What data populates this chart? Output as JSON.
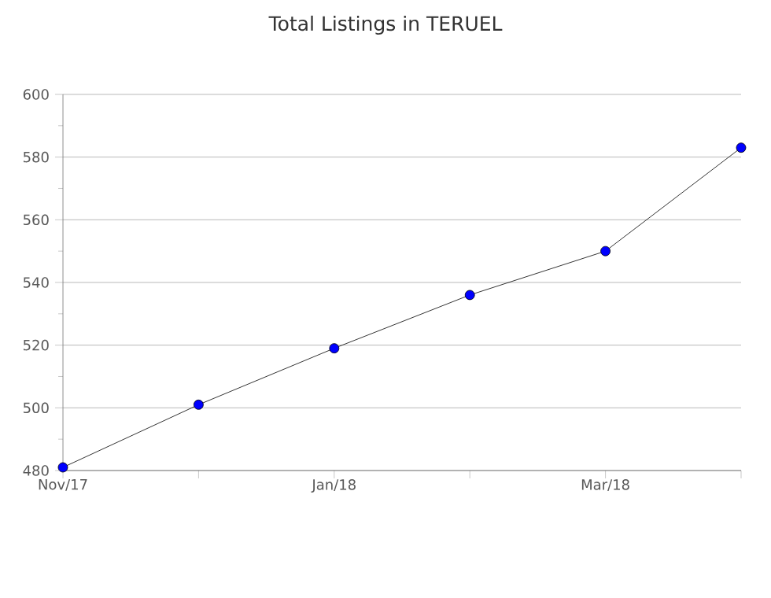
{
  "chart_data": {
    "type": "line",
    "title": "Total Listings in TERUEL",
    "categories": [
      "Nov/17",
      null,
      "Jan/18",
      null,
      "Mar/18",
      null
    ],
    "series": [
      {
        "color": "#0000ff",
        "values": [
          481,
          501,
          519,
          536,
          550,
          583
        ]
      }
    ],
    "ylim": [
      480,
      600
    ],
    "yticks": [
      480,
      {
        "value": 490,
        "label": null
      },
      500,
      {
        "value": 510,
        "label": null
      },
      520,
      {
        "value": 530,
        "label": null
      },
      540,
      {
        "value": 550,
        "label": null
      },
      560,
      {
        "value": 570,
        "label": null
      },
      580,
      {
        "value": 590,
        "label": null
      },
      600
    ],
    "grid": "y",
    "marker": "circle",
    "line_style": "solid"
  }
}
